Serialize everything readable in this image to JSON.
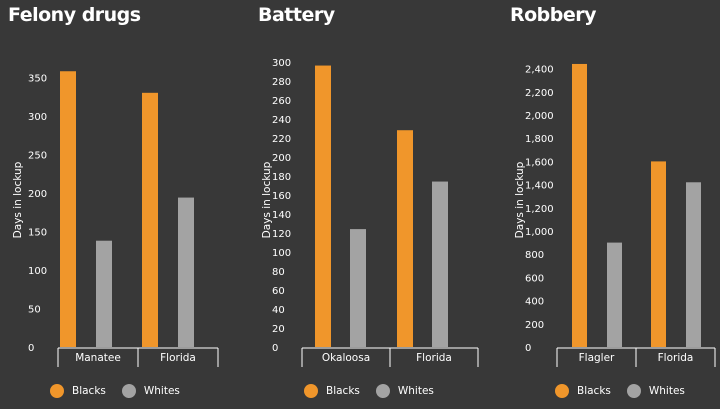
{
  "colors": {
    "blacks": "#f0962b",
    "whites": "#a3a3a3",
    "background": "#383838"
  },
  "legend": {
    "blacks_label": "Blacks",
    "whites_label": "Whites"
  },
  "chart_data": [
    {
      "type": "bar",
      "title": "Felony drugs",
      "ylabel": "Days in lockup",
      "categories": [
        "Manatee",
        "Florida"
      ],
      "ylim": [
        0,
        370
      ],
      "yticks": [
        "0",
        "50",
        "100",
        "150",
        "200",
        "250",
        "300",
        "350"
      ],
      "series": [
        {
          "name": "Blacks",
          "values": [
            358,
            330
          ]
        },
        {
          "name": "Whites",
          "values": [
            138,
            194
          ]
        }
      ]
    },
    {
      "type": "bar",
      "title": "Battery",
      "ylabel": "Days in lockup",
      "categories": [
        "Okaloosa",
        "Florida"
      ],
      "ylim": [
        0,
        305
      ],
      "yticks": [
        "0",
        "20",
        "40",
        "60",
        "80",
        "100",
        "120",
        "140",
        "160",
        "180",
        "200",
        "220",
        "240",
        "260",
        "280",
        "300"
      ],
      "series": [
        {
          "name": "Blacks",
          "values": [
            296,
            228
          ]
        },
        {
          "name": "Whites",
          "values": [
            124,
            174
          ]
        }
      ]
    },
    {
      "type": "bar",
      "title": "Robbery",
      "ylabel": "Days in lockup",
      "categories": [
        "Flagler",
        "Florida"
      ],
      "ylim": [
        0,
        2500
      ],
      "yticks": [
        "0",
        "200",
        "400",
        "600",
        "800",
        "1,000",
        "1,200",
        "1,400",
        "1,600",
        "1,800",
        "2,000",
        "2,200",
        "2,400"
      ],
      "series": [
        {
          "name": "Blacks",
          "values": [
            2440,
            1600
          ]
        },
        {
          "name": "Whites",
          "values": [
            900,
            1420
          ]
        }
      ]
    }
  ]
}
